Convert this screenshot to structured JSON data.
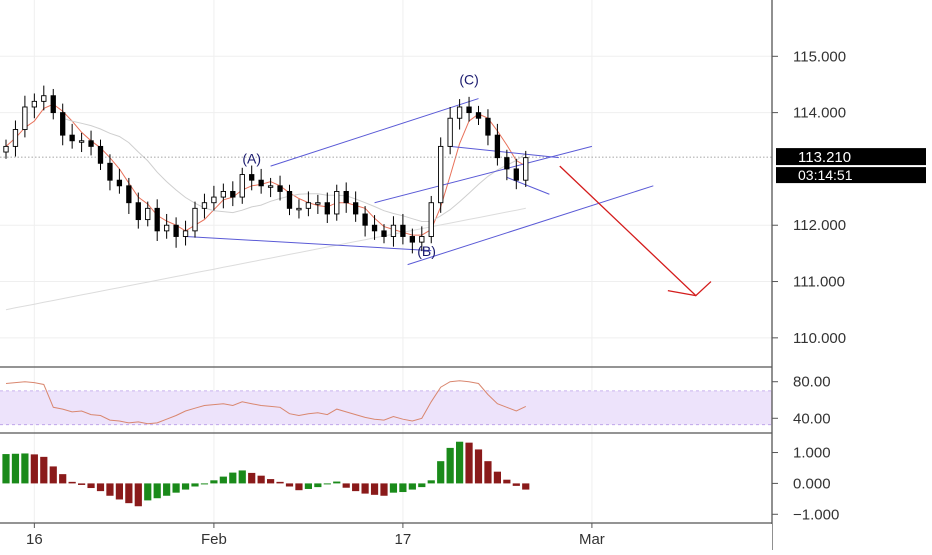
{
  "chart_data": [
    {
      "type": "candlestick",
      "panel": "price",
      "y_ticks": [
        "115.000",
        "114.000",
        "112.000",
        "111.000",
        "110.000"
      ],
      "y_tick_values": [
        115,
        114,
        112,
        111,
        110
      ],
      "ylim": [
        109.5,
        116
      ],
      "x_ticks": [
        "16",
        "Feb",
        "17",
        "Mar"
      ],
      "x_tick_index": [
        3,
        22,
        42,
        62
      ],
      "price_label": "113.210",
      "countdown_label": "03:14:51",
      "current_price": 113.21,
      "wave_labels": [
        {
          "text": "(A)",
          "index": 26,
          "price": 113.1
        },
        {
          "text": "(B)",
          "index": 44.5,
          "price": 111.45
        },
        {
          "text": "(C)",
          "index": 49,
          "price": 114.5
        }
      ],
      "closes": [
        113.4,
        113.7,
        114.1,
        114.2,
        114.3,
        114.0,
        113.6,
        113.5,
        113.5,
        113.4,
        113.1,
        112.8,
        112.7,
        112.4,
        112.1,
        112.3,
        111.9,
        112.0,
        111.8,
        111.9,
        112.3,
        112.4,
        112.5,
        112.6,
        112.5,
        112.9,
        112.8,
        112.7,
        112.7,
        112.6,
        112.3,
        112.3,
        112.4,
        112.4,
        112.2,
        112.6,
        112.4,
        112.2,
        112.0,
        111.9,
        111.8,
        112.0,
        111.8,
        111.7,
        111.8,
        112.4,
        113.4,
        113.9,
        114.1,
        114.0,
        113.9,
        113.6,
        113.2,
        113.0,
        112.8,
        113.2
      ],
      "color_up": "#000000",
      "color_down": "#000000"
    },
    {
      "type": "line",
      "panel": "rsi",
      "y_ticks": [
        "80.00",
        "40.00"
      ],
      "y_tick_values": [
        80,
        40
      ],
      "ylim": [
        25,
        95
      ],
      "band": [
        33,
        70
      ],
      "values": [
        78,
        79,
        80,
        79,
        77,
        52,
        50,
        47,
        48,
        44,
        43,
        38,
        37,
        35,
        36,
        34,
        35,
        39,
        43,
        48,
        51,
        54,
        55,
        56,
        54,
        58,
        56,
        54,
        53,
        52,
        45,
        43,
        45,
        46,
        44,
        50,
        47,
        44,
        41,
        39,
        38,
        42,
        39,
        37,
        40,
        58,
        74,
        80,
        81,
        80,
        78,
        66,
        56,
        52,
        48,
        53
      ],
      "color": "#d9876f",
      "band_color": "#ede3fb"
    },
    {
      "type": "bar",
      "panel": "macd",
      "y_ticks": [
        "1.000",
        "0.000",
        "−1.000"
      ],
      "y_tick_values": [
        1,
        0,
        -1
      ],
      "ylim": [
        -1.25,
        1.6
      ],
      "values": [
        0.95,
        0.96,
        0.97,
        0.94,
        0.86,
        0.55,
        0.3,
        0.05,
        -0.05,
        -0.15,
        -0.25,
        -0.4,
        -0.52,
        -0.64,
        -0.74,
        -0.55,
        -0.48,
        -0.4,
        -0.3,
        -0.2,
        -0.1,
        0.0,
        0.1,
        0.22,
        0.35,
        0.42,
        0.34,
        0.25,
        0.14,
        0.05,
        -0.1,
        -0.22,
        -0.18,
        -0.12,
        0.0,
        0.06,
        -0.14,
        -0.25,
        -0.33,
        -0.37,
        -0.4,
        -0.3,
        -0.28,
        -0.2,
        -0.12,
        0.1,
        0.72,
        1.15,
        1.35,
        1.32,
        1.1,
        0.72,
        0.38,
        0.12,
        -0.08,
        -0.2
      ],
      "color_pos_rising": "#1a8a1a",
      "color_neg_falling": "#8a1a1a"
    }
  ]
}
